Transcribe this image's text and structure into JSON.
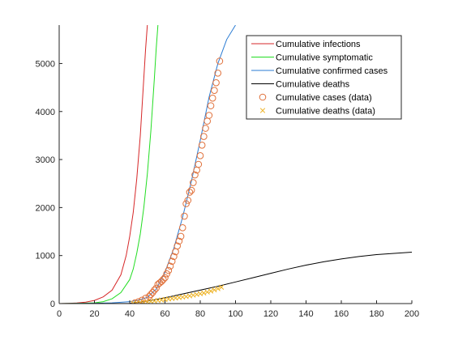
{
  "chart_data": {
    "type": "line",
    "title": "",
    "xlabel": "",
    "ylabel": "",
    "xlim": [
      0,
      200
    ],
    "ylim": [
      0,
      5800
    ],
    "xticks": [
      0,
      20,
      40,
      60,
      80,
      100,
      120,
      140,
      160,
      180,
      200
    ],
    "yticks": [
      0,
      1000,
      2000,
      3000,
      4000,
      5000
    ],
    "grid": false,
    "legend_position": "top-right",
    "colors": {
      "infections": "#d62728",
      "symptomatic": "#22dd22",
      "confirmed": "#2a7bd3",
      "deaths": "#000000",
      "cases_data": "#e0703a",
      "deaths_data": "#edb120"
    },
    "series": [
      {
        "name": "Cumulative infections",
        "kind": "line",
        "x": [
          0,
          5,
          10,
          15,
          20,
          25,
          30,
          35,
          38,
          40,
          42,
          44,
          46,
          48,
          49,
          50
        ],
        "y": [
          0,
          5,
          12,
          30,
          65,
          140,
          280,
          600,
          1000,
          1400,
          1900,
          2600,
          3500,
          4700,
          5300,
          5800
        ]
      },
      {
        "name": "Cumulative symptomatic",
        "kind": "line",
        "x": [
          0,
          10,
          20,
          25,
          30,
          35,
          40,
          42,
          44,
          46,
          48,
          50,
          52,
          54,
          55,
          56
        ],
        "y": [
          0,
          4,
          15,
          40,
          100,
          230,
          500,
          720,
          1050,
          1450,
          2000,
          2700,
          3600,
          4700,
          5300,
          5800
        ]
      },
      {
        "name": "Cumulative confirmed cases",
        "kind": "line",
        "x": [
          0,
          20,
          30,
          40,
          45,
          50,
          55,
          60,
          65,
          70,
          75,
          80,
          85,
          90,
          95,
          100
        ],
        "y": [
          0,
          5,
          15,
          40,
          70,
          130,
          300,
          650,
          1150,
          1800,
          2550,
          3400,
          4300,
          5000,
          5500,
          5800
        ]
      },
      {
        "name": "Cumulative deaths",
        "kind": "line",
        "x": [
          0,
          40,
          50,
          60,
          70,
          80,
          90,
          100,
          110,
          120,
          130,
          140,
          150,
          160,
          170,
          180,
          190,
          200
        ],
        "y": [
          0,
          5,
          50,
          120,
          200,
          280,
          360,
          450,
          540,
          630,
          720,
          800,
          870,
          930,
          980,
          1020,
          1045,
          1070
        ]
      },
      {
        "name": "Cumulative cases (data)",
        "kind": "marker",
        "marker": "circle",
        "x": [
          43,
          45,
          47,
          49,
          51,
          52,
          53,
          54,
          55,
          56,
          57,
          58,
          59,
          60,
          61,
          62,
          63,
          64,
          65,
          66,
          67,
          68,
          69,
          70,
          71,
          72,
          73,
          74,
          75,
          76,
          77,
          78,
          79,
          80,
          81,
          82,
          83,
          84,
          85,
          86,
          87,
          88,
          89,
          90,
          91
        ],
        "y": [
          15,
          40,
          70,
          110,
          150,
          190,
          230,
          280,
          320,
          400,
          430,
          460,
          500,
          540,
          620,
          690,
          780,
          880,
          980,
          1080,
          1200,
          1300,
          1400,
          1580,
          1820,
          2080,
          2150,
          2320,
          2360,
          2520,
          2680,
          2780,
          2900,
          3080,
          3300,
          3480,
          3650,
          3800,
          3920,
          4120,
          4280,
          4440,
          4600,
          4800,
          5050
        ]
      },
      {
        "name": "Cumulative deaths (data)",
        "kind": "marker",
        "marker": "x",
        "x": [
          42,
          44,
          46,
          48,
          50,
          52,
          54,
          56,
          58,
          60,
          62,
          64,
          66,
          68,
          70,
          72,
          74,
          76,
          78,
          80,
          82,
          84,
          86,
          88,
          90,
          92
        ],
        "y": [
          5,
          10,
          18,
          26,
          35,
          45,
          55,
          65,
          75,
          85,
          95,
          105,
          115,
          125,
          135,
          145,
          160,
          175,
          190,
          205,
          220,
          240,
          260,
          285,
          310,
          340
        ]
      }
    ]
  }
}
